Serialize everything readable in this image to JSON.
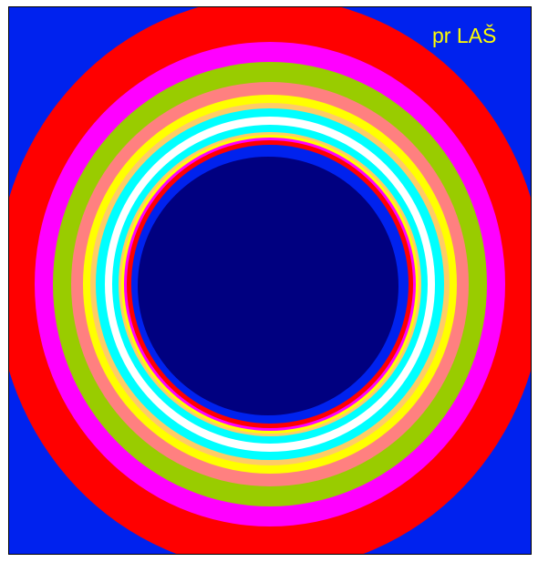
{
  "image": {
    "label": "pr LAŠ"
  }
}
